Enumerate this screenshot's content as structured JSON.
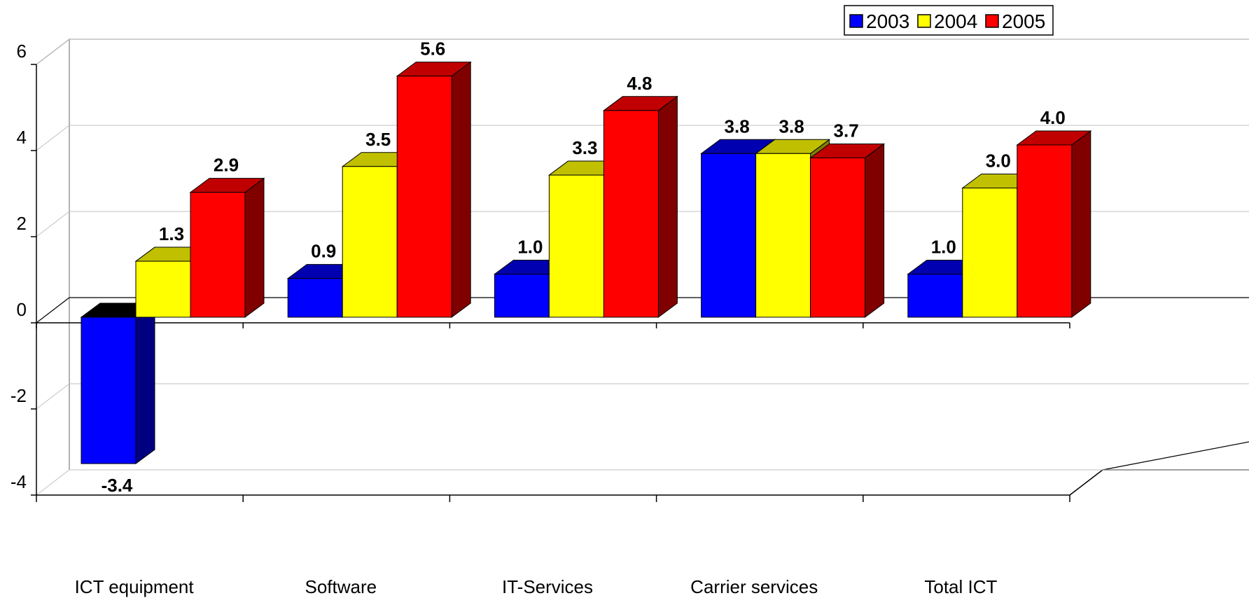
{
  "chart_data": {
    "type": "bar",
    "title": "",
    "xlabel": "",
    "ylabel": "",
    "categories": [
      "ICT equipment",
      "Software",
      "IT-Services",
      "Carrier services",
      "Total ICT"
    ],
    "series": [
      {
        "name": "2003",
        "values": [
          -3.4,
          0.9,
          1.0,
          3.8,
          1.0
        ],
        "labels": [
          "-3.4",
          "0.9",
          "1.0",
          "3.8",
          "1.0"
        ],
        "color": "#0000FF",
        "top_color": "#0000B0",
        "side_color": "#000080"
      },
      {
        "name": "2004",
        "values": [
          1.3,
          3.5,
          3.3,
          3.8,
          3.0
        ],
        "labels": [
          "1.3",
          "3.5",
          "3.3",
          "3.8",
          "3.0"
        ],
        "color": "#FFFF00",
        "top_color": "#C0C000",
        "side_color": "#808000"
      },
      {
        "name": "2005",
        "values": [
          2.9,
          5.6,
          4.8,
          3.7,
          4.0
        ],
        "labels": [
          "2.9",
          "5.6",
          "4.8",
          "3.7",
          "4.0"
        ],
        "color": "#FF0000",
        "top_color": "#C00000",
        "side_color": "#800000"
      }
    ],
    "ylim": [
      -4,
      6
    ],
    "yticks": [
      "6",
      "4",
      "2",
      "0",
      "-2",
      "-4"
    ],
    "grid": true,
    "legend": "top-right",
    "style": "3d-clustered-column"
  }
}
